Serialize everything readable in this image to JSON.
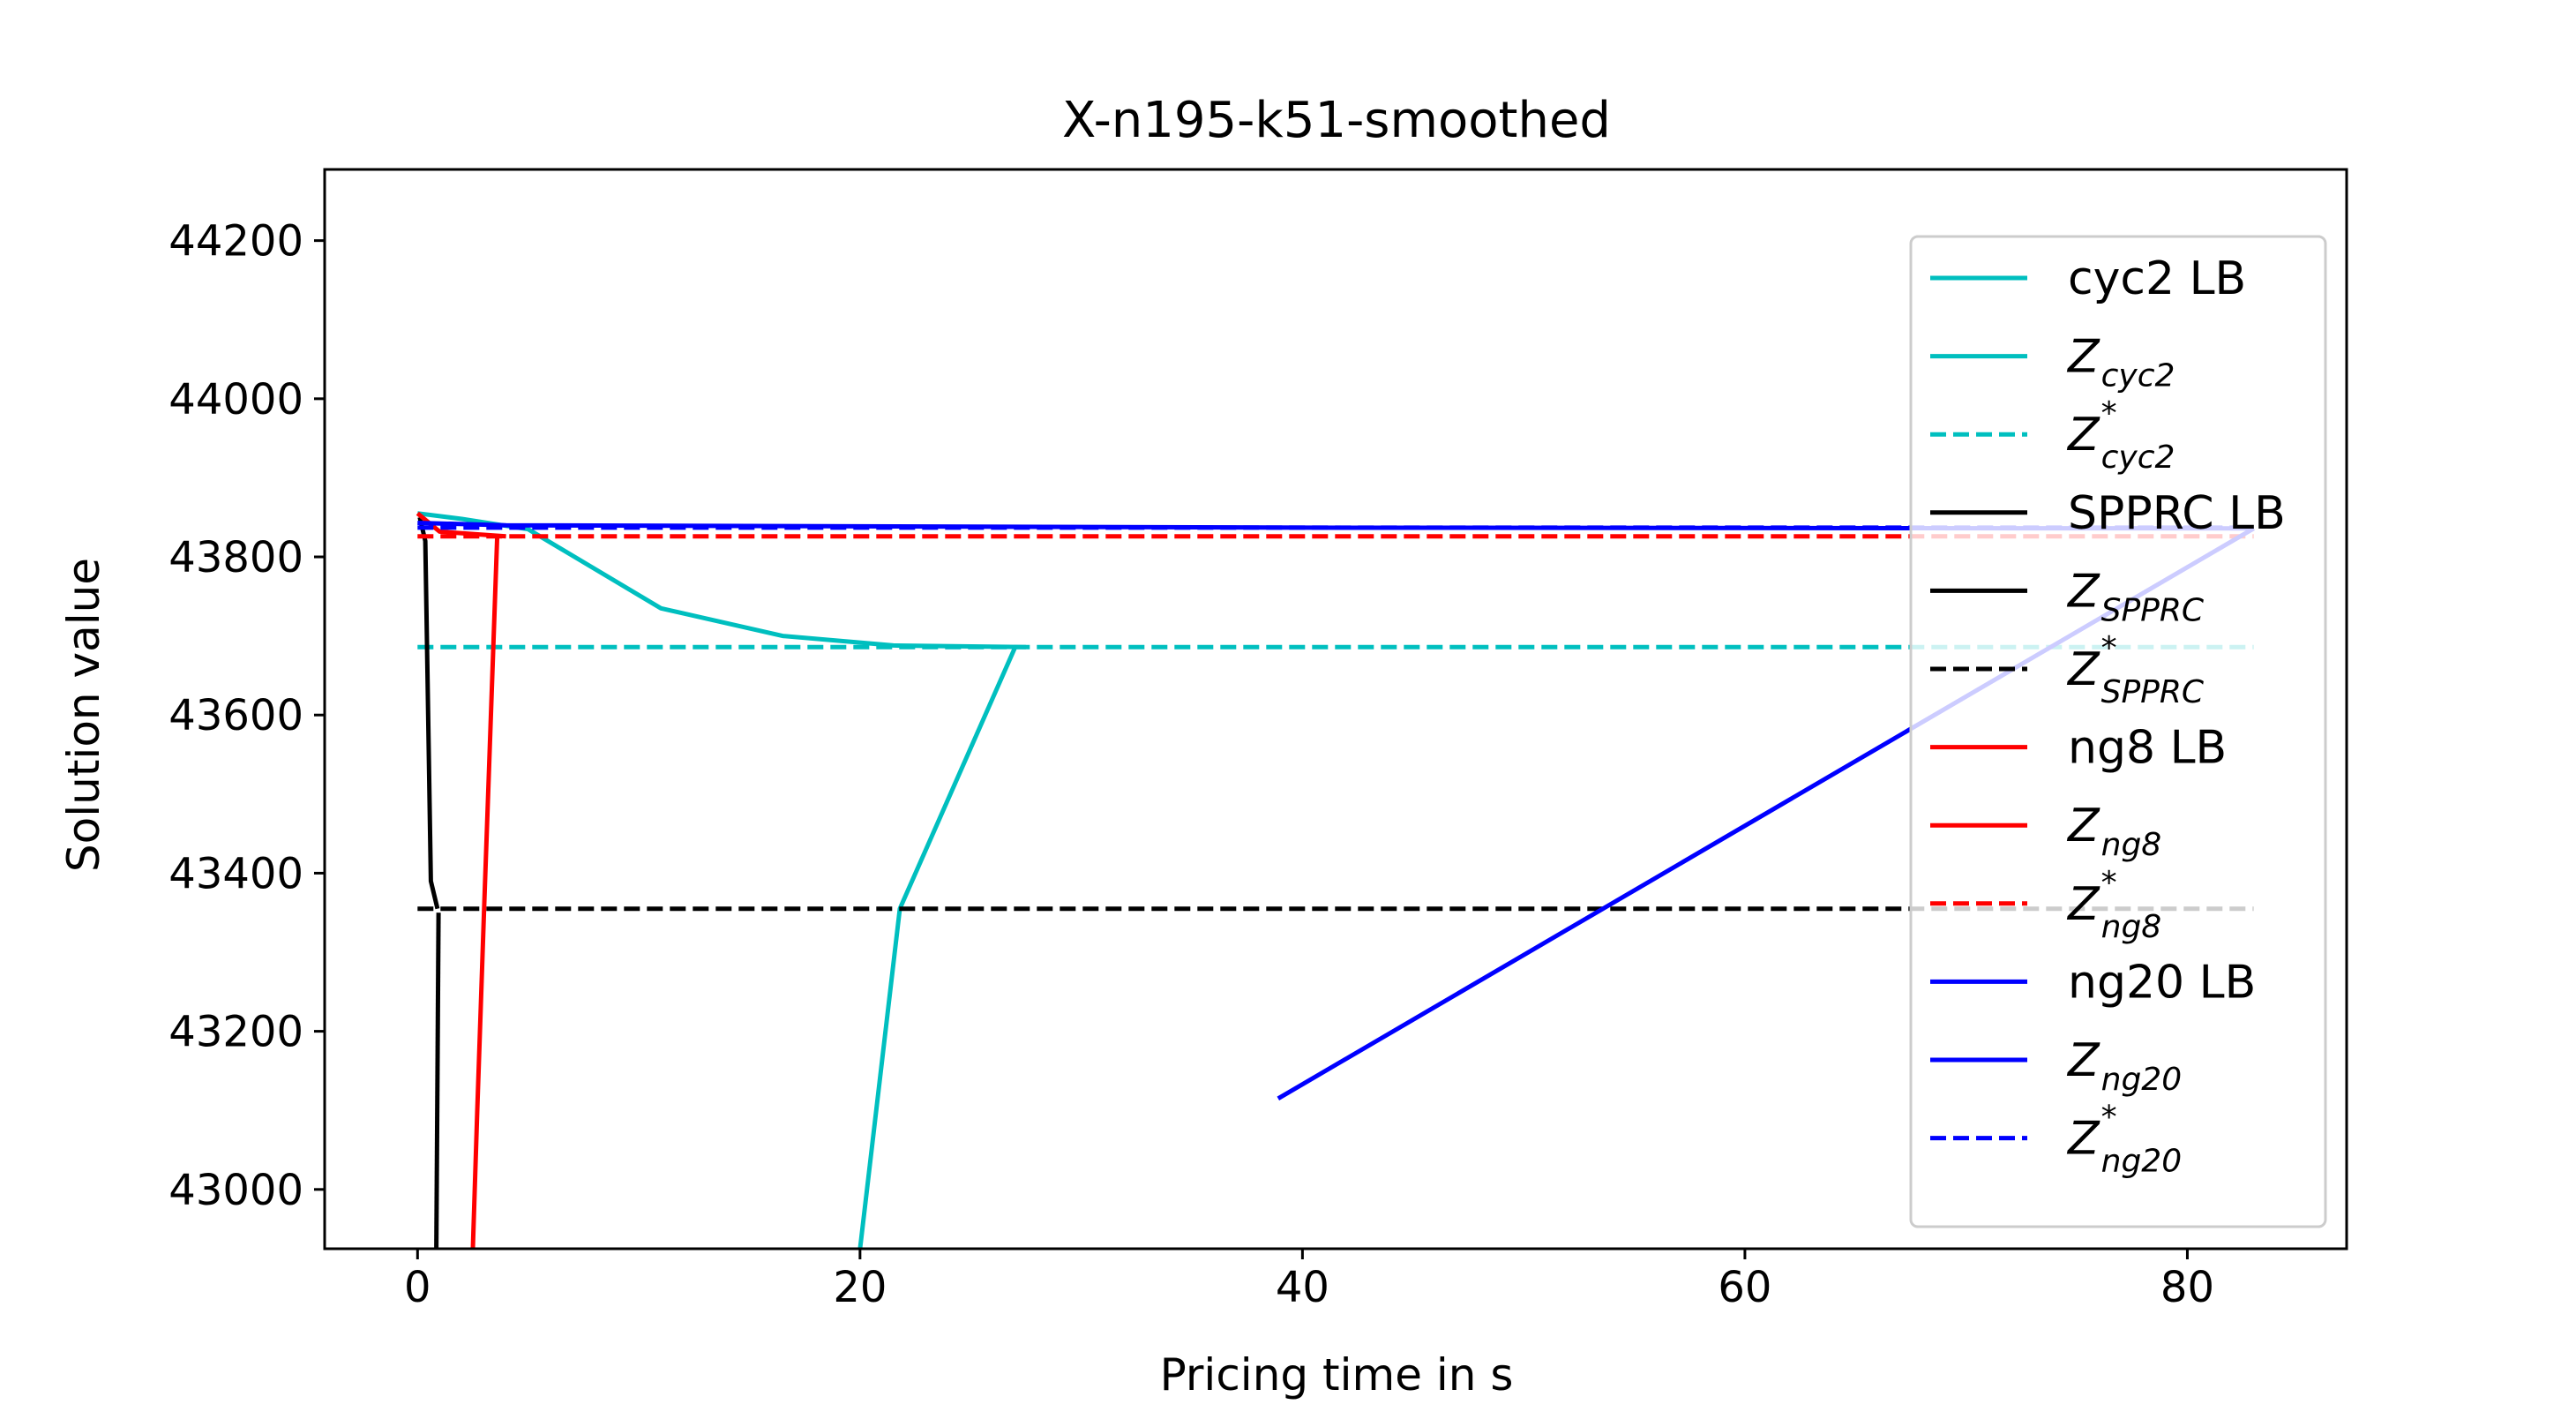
{
  "chart_data": {
    "type": "line",
    "title": "X-n195-k51-smoothed",
    "xlabel": "Pricing time in s",
    "ylabel": "Solution value",
    "xlim": [
      -4.2,
      87.2
    ],
    "ylim": [
      42925,
      44290
    ],
    "xticks": [
      0,
      20,
      40,
      60,
      80
    ],
    "yticks": [
      43000,
      43200,
      43400,
      43600,
      43800,
      44000,
      44200
    ],
    "grid": false,
    "legend_position": "right",
    "colors": {
      "cyc2": "#00bfbf",
      "sppr": "#000000",
      "ng8": "#ff0000",
      "ng20": "#0000ff"
    },
    "series": [
      {
        "id": "cyc2_lb",
        "color": "#00bfbf",
        "dash": "solid",
        "x": [
          20.0,
          21.8,
          27.0
        ],
        "y": [
          42925,
          43355,
          43685
        ]
      },
      {
        "id": "cyc2_z",
        "color": "#00bfbf",
        "dash": "solid",
        "x": [
          0.0,
          2.0,
          5.0,
          11.0,
          16.5,
          21.5,
          27.5
        ],
        "y": [
          43855,
          43848,
          43835,
          43735,
          43700,
          43688,
          43686
        ]
      },
      {
        "id": "cyc2_zstar",
        "color": "#00bfbf",
        "dash": "dashed",
        "x": [
          0.0,
          83.0
        ],
        "y": [
          43686,
          43686
        ]
      },
      {
        "id": "sppr_lb",
        "color": "#000000",
        "dash": "solid",
        "x": [
          0.85,
          0.95
        ],
        "y": [
          42925,
          43350
        ]
      },
      {
        "id": "sppr_z",
        "color": "#000000",
        "dash": "solid",
        "x": [
          0.1,
          0.35,
          0.6,
          0.9
        ],
        "y": [
          43850,
          43820,
          43390,
          43355
        ]
      },
      {
        "id": "sppr_zstar",
        "color": "#000000",
        "dash": "dashed",
        "x": [
          0.0,
          83.0
        ],
        "y": [
          43355,
          43355
        ]
      },
      {
        "id": "ng8_lb",
        "color": "#ff0000",
        "dash": "solid",
        "x": [
          2.5,
          2.7,
          3.0,
          3.6
        ],
        "y": [
          42925,
          43100,
          43350,
          43826
        ]
      },
      {
        "id": "ng8_z",
        "color": "#ff0000",
        "dash": "solid",
        "x": [
          0.0,
          1.0,
          4.0
        ],
        "y": [
          43855,
          43832,
          43826
        ]
      },
      {
        "id": "ng8_zstar",
        "color": "#ff0000",
        "dash": "dashed",
        "x": [
          0.0,
          83.0
        ],
        "y": [
          43826,
          43826
        ]
      },
      {
        "id": "ng20_lb",
        "color": "#0000ff",
        "dash": "solid",
        "x": [
          38.9,
          83.0
        ],
        "y": [
          43115,
          43836
        ]
      },
      {
        "id": "ng20_z",
        "color": "#0000ff",
        "dash": "solid",
        "x": [
          0.0,
          4.0,
          40.0,
          83.0
        ],
        "y": [
          43843,
          43840,
          43837,
          43836
        ]
      },
      {
        "id": "ng20_zstar",
        "color": "#0000ff",
        "dash": "dashed",
        "x": [
          0.0,
          83.0
        ],
        "y": [
          43837,
          43837
        ]
      }
    ],
    "legend": [
      {
        "series": "cyc2_lb",
        "label": "cyc2 LB",
        "math": false
      },
      {
        "series": "cyc2_z",
        "base": "Z",
        "sub": "cyc2",
        "sup": "",
        "math": true
      },
      {
        "series": "cyc2_zstar",
        "base": "Z",
        "sub": "cyc2",
        "sup": "*",
        "math": true
      },
      {
        "series": "sppr_lb",
        "label": "SPPRC LB",
        "math": false
      },
      {
        "series": "sppr_z",
        "base": "Z",
        "sub": "SPPRC",
        "sup": "",
        "math": true
      },
      {
        "series": "sppr_zstar",
        "base": "Z",
        "sub": "SPPRC",
        "sup": "*",
        "math": true
      },
      {
        "series": "ng8_lb",
        "label": "ng8 LB",
        "math": false
      },
      {
        "series": "ng8_z",
        "base": "Z",
        "sub": "ng8",
        "sup": "",
        "math": true
      },
      {
        "series": "ng8_zstar",
        "base": "Z",
        "sub": "ng8",
        "sup": "*",
        "math": true
      },
      {
        "series": "ng20_lb",
        "label": "ng20 LB",
        "math": false
      },
      {
        "series": "ng20_z",
        "base": "Z",
        "sub": "ng20",
        "sup": "",
        "math": true
      },
      {
        "series": "ng20_zstar",
        "base": "Z",
        "sub": "ng20",
        "sup": "*",
        "math": true
      }
    ]
  }
}
